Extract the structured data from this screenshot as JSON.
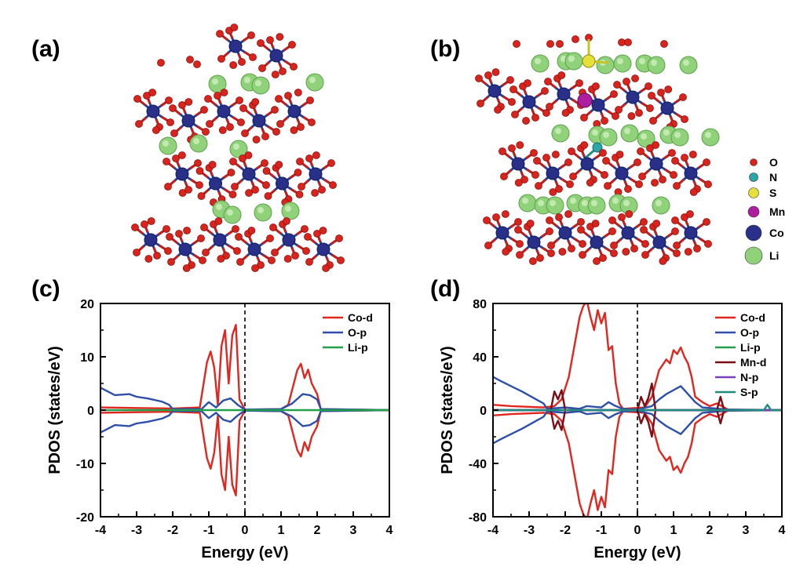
{
  "panels": {
    "a": "(a)",
    "b": "(b)",
    "c": "(c)",
    "d": "(d)"
  },
  "atom_legend": [
    {
      "label": "O",
      "color": "#d8241c"
    },
    {
      "label": "N",
      "color": "#2aa7a8"
    },
    {
      "label": "S",
      "color": "#e8e03a"
    },
    {
      "label": "Mn",
      "color": "#b01ea0"
    },
    {
      "label": "Co",
      "color": "#28308a"
    },
    {
      "label": "Li",
      "color": "#8fd27a"
    }
  ],
  "chart_data": [
    {
      "type": "line",
      "panel": "(c)",
      "xlabel": "Energy (eV)",
      "ylabel": "PDOS (states/eV)",
      "xlim": [
        -4,
        4
      ],
      "ylim": [
        -20,
        20
      ],
      "xticks": [
        -4,
        -3,
        -2,
        -1,
        0,
        1,
        2,
        3,
        4
      ],
      "yticks": [
        -20,
        -10,
        0,
        10,
        20
      ],
      "fermi_level": 0,
      "legend_position": "top-right",
      "series": [
        {
          "name": "Co-d",
          "color": "#e0261f",
          "x": [
            -4.0,
            -3.0,
            -2.0,
            -1.25,
            -1.05,
            -0.95,
            -0.85,
            -0.75,
            -0.65,
            -0.55,
            -0.45,
            -0.35,
            -0.25,
            -0.15,
            0.0,
            1.0,
            1.2,
            1.45,
            1.55,
            1.65,
            1.75,
            1.85,
            2.0,
            2.1,
            4.0
          ],
          "y": [
            0.5,
            0.4,
            0.3,
            0.5,
            9.0,
            11.0,
            8.0,
            1.0,
            12.0,
            15.0,
            5.0,
            14.0,
            16.0,
            2.0,
            0.1,
            0.2,
            1.0,
            7.5,
            8.7,
            6.0,
            7.6,
            5.0,
            3.0,
            0.2,
            0.0
          ],
          "mirrored": true
        },
        {
          "name": "O-p",
          "color": "#2e4fa8",
          "x": [
            -4.0,
            -3.6,
            -3.2,
            -3.0,
            -2.7,
            -2.3,
            -2.1,
            -2.0,
            -1.2,
            -1.0,
            -0.8,
            -0.6,
            -0.4,
            -0.2,
            0.0,
            1.0,
            1.3,
            1.6,
            1.8,
            2.0,
            2.1,
            4.0
          ],
          "y": [
            4.2,
            2.8,
            3.0,
            2.5,
            2.2,
            1.6,
            1.0,
            0.2,
            0.2,
            1.5,
            0.5,
            1.8,
            2.2,
            1.0,
            0.1,
            0.2,
            1.2,
            3.0,
            2.8,
            2.0,
            0.2,
            0.0
          ],
          "mirrored": true
        },
        {
          "name": "Li-p",
          "color": "#23a04a",
          "x": [
            -4.0,
            4.0
          ],
          "y": [
            0.0,
            0.0
          ],
          "mirrored": false
        }
      ]
    },
    {
      "type": "line",
      "panel": "(d)",
      "xlabel": "Energy (eV)",
      "ylabel": "PDOS (states/eV)",
      "xlim": [
        -4,
        4
      ],
      "ylim": [
        -80,
        80
      ],
      "xticks": [
        -4,
        -3,
        -2,
        -1,
        0,
        1,
        2,
        3,
        4
      ],
      "yticks": [
        -80,
        -40,
        0,
        40,
        80
      ],
      "fermi_level": 0,
      "legend_position": "top-right",
      "series": [
        {
          "name": "Co-d",
          "color": "#e0261f",
          "x": [
            -4.0,
            -3.5,
            -2.6,
            -2.3,
            -2.1,
            -1.9,
            -1.8,
            -1.7,
            -1.6,
            -1.5,
            -1.4,
            -1.3,
            -1.2,
            -1.1,
            -1.0,
            -0.9,
            -0.8,
            -0.7,
            -0.6,
            -0.5,
            -0.4,
            0.2,
            0.4,
            0.6,
            0.8,
            0.9,
            1.0,
            1.1,
            1.2,
            1.3,
            1.4,
            1.5,
            1.6,
            1.8,
            2.0,
            2.2,
            2.4,
            2.5,
            3.0,
            4.0
          ],
          "y": [
            4.0,
            3.0,
            2.0,
            3.0,
            8.0,
            25.0,
            40.0,
            55.0,
            70.0,
            78.0,
            82.0,
            70.0,
            60.0,
            75.0,
            65.0,
            73.0,
            45.0,
            48.0,
            20.0,
            5.0,
            1.0,
            2.0,
            10.0,
            30.0,
            38.0,
            35.0,
            45.0,
            42.0,
            47.0,
            40.0,
            35.0,
            25.0,
            10.0,
            6.0,
            3.0,
            5.0,
            2.0,
            0.5,
            0.0,
            0.0
          ],
          "mirrored": true
        },
        {
          "name": "O-p",
          "color": "#2e4fa8",
          "x": [
            -4.0,
            -3.8,
            -3.5,
            -3.2,
            -3.0,
            -2.8,
            -2.6,
            -2.5,
            -2.0,
            -1.6,
            -1.4,
            -1.0,
            -0.8,
            -0.6,
            -0.4,
            0.0,
            0.4,
            0.6,
            0.8,
            1.0,
            1.2,
            1.4,
            1.6,
            1.8,
            2.5,
            4.0
          ],
          "y": [
            25.0,
            22.0,
            18.0,
            14.0,
            11.0,
            8.0,
            5.0,
            1.0,
            2.0,
            1.0,
            3.0,
            2.0,
            6.0,
            3.0,
            1.0,
            0.5,
            3.0,
            8.0,
            12.0,
            15.0,
            18.0,
            12.0,
            6.0,
            2.0,
            0.5,
            0.0
          ],
          "mirrored": true
        },
        {
          "name": "Li-p",
          "color": "#23a04a",
          "x": [
            -4.0,
            4.0
          ],
          "y": [
            0.0,
            0.0
          ],
          "mirrored": false
        },
        {
          "name": "Mn-d",
          "color": "#7a0f16",
          "x": [
            -4.0,
            -2.4,
            -2.3,
            -2.2,
            -2.1,
            -2.0,
            -1.8,
            0.0,
            0.1,
            0.2,
            0.3,
            0.4,
            0.5,
            2.2,
            2.3,
            2.4,
            4.0
          ],
          "y": [
            0.0,
            0.0,
            14.0,
            8.0,
            15.0,
            0.0,
            0.0,
            0.0,
            10.0,
            3.0,
            9.0,
            20.0,
            0.0,
            0.0,
            10.0,
            0.0,
            0.0
          ],
          "mirrored": true
        },
        {
          "name": "N-p",
          "color": "#7a3fbf",
          "x": [
            -4.0,
            4.0
          ],
          "y": [
            0.0,
            0.0
          ],
          "mirrored": false
        },
        {
          "name": "S-p",
          "color": "#1e8c7e",
          "x": [
            -4.0,
            3.5,
            3.6,
            3.7,
            4.0
          ],
          "y": [
            0.0,
            0.0,
            4.0,
            0.0,
            0.0
          ],
          "mirrored": false
        }
      ]
    }
  ]
}
